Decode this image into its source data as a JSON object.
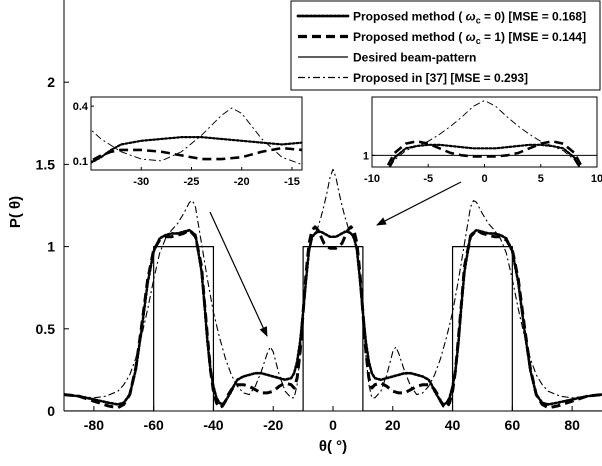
{
  "chart_data": [
    {
      "type": "line",
      "xlabel": "θ( °)",
      "ylabel": "P( θ)",
      "xlim": [
        -90,
        90
      ],
      "ylim": [
        0,
        2.5
      ],
      "xticks": [
        -80,
        -60,
        -40,
        -20,
        0,
        20,
        40,
        60,
        80
      ],
      "yticks": [
        0,
        0.5,
        1,
        1.5,
        2
      ],
      "yticklabels": [
        "0",
        "0.5",
        "1",
        "1.5",
        "2"
      ],
      "grid": false,
      "legend_position": "top-right",
      "series": [
        {
          "name": "Proposed method ( ω_c = 0) [MSE = 0.168]",
          "label_prefix": "Proposed method (",
          "label_omega": "ω",
          "label_sub": "c",
          "label_suffix": " = 0) [MSE = 0.168]",
          "style": "dotted",
          "color": "#000000",
          "x": [
            -90,
            -85,
            -80,
            -75,
            -72,
            -70,
            -68,
            -66,
            -64,
            -62,
            -60,
            -58,
            -56,
            -54,
            -52,
            -50,
            -48,
            -46,
            -44,
            -43,
            -42,
            -41,
            -40,
            -39,
            -38,
            -37,
            -36,
            -35,
            -34,
            -33,
            -32,
            -30,
            -28,
            -26,
            -24,
            -22,
            -20,
            -18,
            -16,
            -14,
            -13,
            -12,
            -11,
            -10,
            -9,
            -8,
            -7,
            -6,
            -5,
            -4,
            -3,
            -2,
            -1,
            0,
            1,
            2,
            3,
            4,
            5,
            6,
            7,
            8,
            9,
            10,
            11,
            12,
            13,
            14,
            16,
            18,
            20,
            22,
            24,
            26,
            28,
            30,
            32,
            33,
            34,
            35,
            36,
            37,
            38,
            39,
            40,
            41,
            42,
            43,
            44,
            46,
            48,
            50,
            52,
            54,
            56,
            58,
            60,
            62,
            64,
            66,
            68,
            70,
            72,
            75,
            80,
            85,
            90
          ],
          "y": [
            0.1,
            0.09,
            0.07,
            0.05,
            0.04,
            0.05,
            0.1,
            0.25,
            0.5,
            0.78,
            0.97,
            1.05,
            1.07,
            1.08,
            1.08,
            1.09,
            1.1,
            1.07,
            0.85,
            0.65,
            0.42,
            0.25,
            0.15,
            0.08,
            0.05,
            0.04,
            0.06,
            0.09,
            0.12,
            0.16,
            0.19,
            0.21,
            0.22,
            0.23,
            0.23,
            0.22,
            0.21,
            0.2,
            0.19,
            0.2,
            0.23,
            0.3,
            0.42,
            0.6,
            0.8,
            0.98,
            1.06,
            1.08,
            1.09,
            1.09,
            1.08,
            1.07,
            1.06,
            1.06,
            1.06,
            1.07,
            1.08,
            1.09,
            1.09,
            1.08,
            1.06,
            0.98,
            0.8,
            0.6,
            0.42,
            0.3,
            0.23,
            0.2,
            0.19,
            0.2,
            0.21,
            0.22,
            0.23,
            0.23,
            0.22,
            0.21,
            0.19,
            0.16,
            0.12,
            0.09,
            0.06,
            0.04,
            0.05,
            0.08,
            0.15,
            0.25,
            0.42,
            0.65,
            0.85,
            1.07,
            1.1,
            1.09,
            1.08,
            1.08,
            1.07,
            1.05,
            0.97,
            0.78,
            0.5,
            0.25,
            0.1,
            0.05,
            0.04,
            0.05,
            0.07,
            0.09,
            0.1
          ]
        },
        {
          "name": "Proposed method ( ω_c = 1) [MSE = 0.144]",
          "label_prefix": "Proposed method (",
          "label_omega": "ω",
          "label_sub": "c",
          "label_suffix": " = 1) [MSE = 0.144]",
          "style": "dashed",
          "color": "#000000",
          "x": [
            -90,
            -85,
            -80,
            -75,
            -72,
            -70,
            -68,
            -66,
            -64,
            -62,
            -60,
            -58,
            -56,
            -54,
            -52,
            -50,
            -48,
            -46,
            -44,
            -43,
            -42,
            -41,
            -40,
            -39,
            -38,
            -37,
            -36,
            -35,
            -34,
            -33,
            -32,
            -30,
            -28,
            -26,
            -24,
            -22,
            -20,
            -18,
            -16,
            -14,
            -13,
            -12,
            -11,
            -10,
            -9,
            -8,
            -7,
            -6,
            -5,
            -4,
            -3,
            -2,
            -1,
            0,
            1,
            2,
            3,
            4,
            5,
            6,
            7,
            8,
            9,
            10,
            11,
            12,
            13,
            14,
            16,
            18,
            20,
            22,
            24,
            26,
            28,
            30,
            32,
            33,
            34,
            35,
            36,
            37,
            38,
            39,
            40,
            41,
            42,
            43,
            44,
            46,
            48,
            50,
            52,
            54,
            56,
            58,
            60,
            62,
            64,
            66,
            68,
            70,
            72,
            75,
            80,
            85,
            90
          ],
          "y": [
            0.1,
            0.09,
            0.06,
            0.03,
            0.02,
            0.04,
            0.1,
            0.26,
            0.52,
            0.8,
            0.98,
            1.04,
            1.06,
            1.06,
            1.07,
            1.08,
            1.1,
            1.06,
            0.88,
            0.66,
            0.45,
            0.25,
            0.12,
            0.05,
            0.02,
            0.03,
            0.06,
            0.1,
            0.13,
            0.15,
            0.16,
            0.16,
            0.15,
            0.13,
            0.11,
            0.11,
            0.12,
            0.15,
            0.17,
            0.16,
            0.14,
            0.2,
            0.36,
            0.6,
            0.84,
            1.02,
            1.1,
            1.12,
            1.1,
            1.06,
            1.02,
            1.0,
            0.99,
            0.99,
            0.99,
            1.0,
            1.02,
            1.06,
            1.1,
            1.12,
            1.1,
            1.02,
            0.84,
            0.6,
            0.36,
            0.2,
            0.14,
            0.16,
            0.17,
            0.15,
            0.12,
            0.11,
            0.11,
            0.13,
            0.15,
            0.16,
            0.16,
            0.15,
            0.13,
            0.1,
            0.06,
            0.03,
            0.02,
            0.05,
            0.12,
            0.25,
            0.45,
            0.66,
            0.88,
            1.06,
            1.1,
            1.08,
            1.07,
            1.06,
            1.06,
            1.04,
            0.98,
            0.8,
            0.52,
            0.26,
            0.1,
            0.04,
            0.02,
            0.03,
            0.06,
            0.09,
            0.1
          ]
        },
        {
          "name": "Desired beam-pattern",
          "style": "solid",
          "color": "#000000",
          "x": [
            -90,
            -60,
            -60,
            -40,
            -40,
            -10,
            -10,
            10,
            10,
            40,
            40,
            60,
            60,
            90
          ],
          "y": [
            0,
            0,
            1,
            1,
            0,
            0,
            1,
            1,
            0,
            0,
            1,
            1,
            0,
            0
          ]
        },
        {
          "name": "Proposed in [37] [MSE = 0.293]",
          "style": "dashdot",
          "color": "#000000",
          "x": [
            -90,
            -85,
            -80,
            -76,
            -72,
            -70,
            -68,
            -66,
            -64,
            -62,
            -60,
            -58,
            -56,
            -54,
            -52,
            -50,
            -48,
            -47,
            -46,
            -44,
            -42,
            -40,
            -38,
            -36,
            -34,
            -32,
            -30,
            -28,
            -26,
            -24,
            -22,
            -21,
            -20,
            -18,
            -16,
            -14,
            -13,
            -12,
            -11,
            -10,
            -9,
            -8,
            -7,
            -6,
            -5,
            -4,
            -3,
            -2,
            -1,
            0,
            1,
            2,
            3,
            4,
            5,
            6,
            7,
            8,
            9,
            10,
            11,
            12,
            13,
            14,
            16,
            18,
            20,
            21,
            22,
            24,
            26,
            28,
            30,
            32,
            34,
            36,
            38,
            40,
            42,
            44,
            46,
            47,
            48,
            50,
            52,
            54,
            56,
            58,
            60,
            62,
            64,
            66,
            68,
            70,
            72,
            76,
            80,
            85,
            90
          ],
          "y": [
            0.1,
            0.09,
            0.08,
            0.09,
            0.12,
            0.16,
            0.22,
            0.32,
            0.46,
            0.62,
            0.8,
            0.96,
            1.05,
            1.1,
            1.14,
            1.2,
            1.27,
            1.28,
            1.24,
            1.02,
            0.8,
            0.6,
            0.45,
            0.32,
            0.22,
            0.15,
            0.11,
            0.1,
            0.15,
            0.24,
            0.35,
            0.39,
            0.36,
            0.22,
            0.12,
            0.08,
            0.08,
            0.16,
            0.34,
            0.58,
            0.8,
            0.96,
            1.04,
            1.08,
            1.12,
            1.18,
            1.25,
            1.33,
            1.42,
            1.47,
            1.42,
            1.33,
            1.25,
            1.18,
            1.12,
            1.08,
            1.04,
            0.96,
            0.8,
            0.58,
            0.34,
            0.16,
            0.08,
            0.08,
            0.12,
            0.22,
            0.36,
            0.39,
            0.35,
            0.24,
            0.15,
            0.1,
            0.11,
            0.15,
            0.22,
            0.32,
            0.45,
            0.6,
            0.8,
            1.02,
            1.24,
            1.28,
            1.27,
            1.2,
            1.14,
            1.1,
            1.05,
            0.96,
            0.8,
            0.62,
            0.46,
            0.32,
            0.22,
            0.16,
            0.12,
            0.09,
            0.08,
            0.09,
            0.1
          ]
        }
      ]
    },
    {
      "type": "line",
      "xlim": [
        -35,
        -14
      ],
      "ylim": [
        0.05,
        0.45
      ],
      "xticks": [
        -30,
        -25,
        -20,
        -15
      ],
      "yticks": [
        0.1,
        0.4
      ],
      "yticklabels": [
        "0.1",
        "0.4"
      ],
      "series_ref": "inset of main chart around θ = -22°"
    },
    {
      "type": "line",
      "xlim": [
        -10,
        10
      ],
      "ylim": [
        0.9,
        1.5
      ],
      "xticks": [
        -10,
        -5,
        0,
        5,
        10
      ],
      "yticks": [
        1
      ],
      "yticklabels": [
        "1"
      ],
      "series_ref": "inset of main chart around θ = 0°"
    }
  ]
}
